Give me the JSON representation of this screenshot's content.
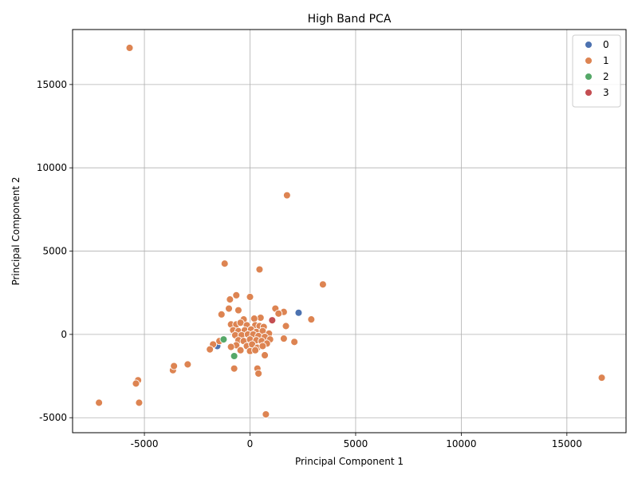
{
  "chart_data": {
    "type": "scatter",
    "title": "High Band PCA",
    "xlabel": "Principal Component 1",
    "ylabel": "Principal Component 2",
    "xlim": [
      -8400,
      17800
    ],
    "ylim": [
      -5900,
      18300
    ],
    "xticks": [
      -5000,
      0,
      5000,
      10000,
      15000
    ],
    "yticks": [
      -5000,
      0,
      5000,
      10000,
      15000
    ],
    "grid": true,
    "legend_position": "top-right",
    "series": [
      {
        "name": "0",
        "color": "#4c72b0",
        "points": [
          [
            2300,
            1300
          ],
          [
            -1550,
            -700
          ]
        ]
      },
      {
        "name": "1",
        "color": "#dd8452",
        "points": [
          [
            -5700,
            17200
          ],
          [
            1750,
            8350
          ],
          [
            -1200,
            4250
          ],
          [
            450,
            3900
          ],
          [
            3450,
            3000
          ],
          [
            -650,
            2350
          ],
          [
            -950,
            2100
          ],
          [
            0,
            2250
          ],
          [
            -1000,
            1550
          ],
          [
            -550,
            1450
          ],
          [
            1200,
            1550
          ],
          [
            1600,
            1350
          ],
          [
            1350,
            1250
          ],
          [
            -1350,
            1200
          ],
          [
            2900,
            900
          ],
          [
            500,
            1000
          ],
          [
            200,
            950
          ],
          [
            -300,
            900
          ],
          [
            1700,
            500
          ],
          [
            -900,
            600
          ],
          [
            -650,
            600
          ],
          [
            -450,
            700
          ],
          [
            -150,
            550
          ],
          [
            250,
            550
          ],
          [
            450,
            500
          ],
          [
            650,
            450
          ],
          [
            -800,
            250
          ],
          [
            -550,
            200
          ],
          [
            -250,
            250
          ],
          [
            50,
            300
          ],
          [
            300,
            150
          ],
          [
            600,
            200
          ],
          [
            900,
            50
          ],
          [
            -700,
            -50
          ],
          [
            -400,
            -50
          ],
          [
            -100,
            0
          ],
          [
            150,
            0
          ],
          [
            400,
            -100
          ],
          [
            700,
            -150
          ],
          [
            950,
            -300
          ],
          [
            -550,
            -350
          ],
          [
            -300,
            -400
          ],
          [
            0,
            -300
          ],
          [
            300,
            -350
          ],
          [
            550,
            -400
          ],
          [
            800,
            -550
          ],
          [
            1600,
            -250
          ],
          [
            2100,
            -450
          ],
          [
            -650,
            -650
          ],
          [
            -450,
            -950
          ],
          [
            -150,
            -700
          ],
          [
            100,
            -600
          ],
          [
            350,
            -800
          ],
          [
            600,
            -700
          ],
          [
            -900,
            -750
          ],
          [
            0,
            -1000
          ],
          [
            250,
            -950
          ],
          [
            700,
            -1250
          ],
          [
            -1450,
            -400
          ],
          [
            -1750,
            -600
          ],
          [
            -1900,
            -900
          ],
          [
            -750,
            -2050
          ],
          [
            350,
            -2050
          ],
          [
            400,
            -2350
          ],
          [
            -2950,
            -1800
          ],
          [
            -3650,
            -2150
          ],
          [
            -3600,
            -1900
          ],
          [
            -5300,
            -2750
          ],
          [
            -5400,
            -2950
          ],
          [
            -5250,
            -4100
          ],
          [
            -7150,
            -4100
          ],
          [
            750,
            -4800
          ],
          [
            16650,
            -2600
          ]
        ]
      },
      {
        "name": "2",
        "color": "#55a868",
        "points": [
          [
            -1250,
            -300
          ],
          [
            -750,
            -1300
          ]
        ]
      },
      {
        "name": "3",
        "color": "#c44e52",
        "points": [
          [
            1050,
            850
          ]
        ]
      }
    ]
  }
}
